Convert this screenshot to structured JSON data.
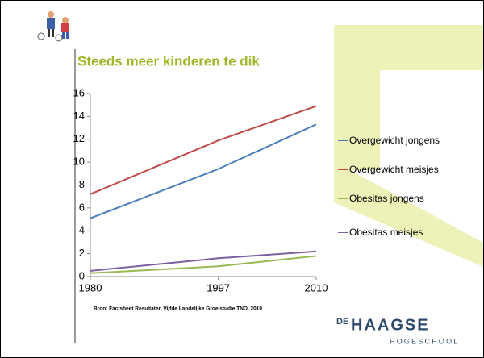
{
  "chart_data": {
    "type": "line",
    "title": "Steeds meer kinderen te dik",
    "source": "Bron: Factsheet Resultaten Vijfde Landelijke Groeistudie TNO, 2010",
    "x": [
      1980,
      1997,
      2010
    ],
    "xlim": [
      1980,
      2010
    ],
    "xticks": [
      1980,
      1997,
      2010
    ],
    "ylim": [
      0,
      16
    ],
    "yticks": [
      0,
      2,
      4,
      6,
      8,
      10,
      12,
      14,
      16
    ],
    "legend": "right",
    "series": [
      {
        "name": "Overgewicht jongens",
        "color": "#4a7ebb",
        "values": [
          5.1,
          9.4,
          13.3
        ]
      },
      {
        "name": "Overgewicht meisjes",
        "color": "#be4b48",
        "values": [
          7.2,
          11.9,
          14.9
        ]
      },
      {
        "name": "Obesitas jongens",
        "color": "#98b954",
        "values": [
          0.3,
          0.9,
          1.8
        ]
      },
      {
        "name": "Obesitas meisjes",
        "color": "#7d60a0",
        "values": [
          0.5,
          1.6,
          2.2
        ]
      }
    ]
  },
  "logo": {
    "prefix": "DE",
    "name": "HAAGSE",
    "sub": "HOGESCHOOL"
  }
}
